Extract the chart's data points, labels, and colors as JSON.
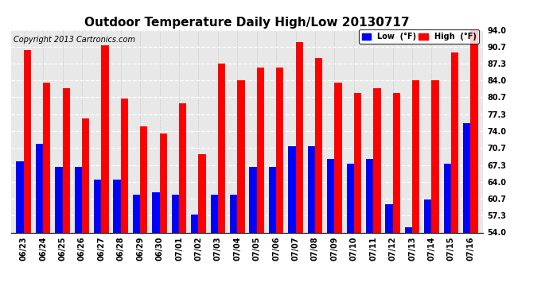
{
  "title": "Outdoor Temperature Daily High/Low 20130717",
  "copyright": "Copyright 2013 Cartronics.com",
  "legend_low": "Low  (°F)",
  "legend_high": "High  (°F)",
  "dates": [
    "06/23",
    "06/24",
    "06/25",
    "06/26",
    "06/27",
    "06/28",
    "06/29",
    "06/30",
    "07/01",
    "07/02",
    "07/03",
    "07/04",
    "07/05",
    "07/06",
    "07/07",
    "07/08",
    "07/09",
    "07/10",
    "07/11",
    "07/12",
    "07/13",
    "07/14",
    "07/15",
    "07/16"
  ],
  "highs": [
    90.0,
    83.5,
    82.5,
    76.5,
    91.0,
    80.5,
    75.0,
    73.5,
    79.5,
    69.5,
    87.3,
    84.0,
    86.5,
    86.5,
    91.5,
    88.5,
    83.5,
    81.5,
    82.5,
    81.5,
    84.0,
    84.0,
    89.5,
    94.0
  ],
  "lows": [
    68.0,
    71.5,
    67.0,
    67.0,
    64.5,
    64.5,
    61.5,
    62.0,
    61.5,
    57.5,
    61.5,
    61.5,
    67.0,
    67.0,
    71.0,
    71.0,
    68.5,
    67.5,
    68.5,
    59.5,
    55.0,
    60.5,
    67.5,
    75.5
  ],
  "high_color": "#ff0000",
  "low_color": "#0000ff",
  "bg_color": "#ffffff",
  "plot_bg_color": "#e8e8e8",
  "ylim_min": 54.0,
  "ylim_max": 94.0,
  "yticks": [
    54.0,
    57.3,
    60.7,
    64.0,
    67.3,
    70.7,
    74.0,
    77.3,
    80.7,
    84.0,
    87.3,
    90.7,
    94.0
  ],
  "bar_width": 0.38,
  "title_fontsize": 11,
  "tick_fontsize": 7,
  "copyright_fontsize": 7
}
